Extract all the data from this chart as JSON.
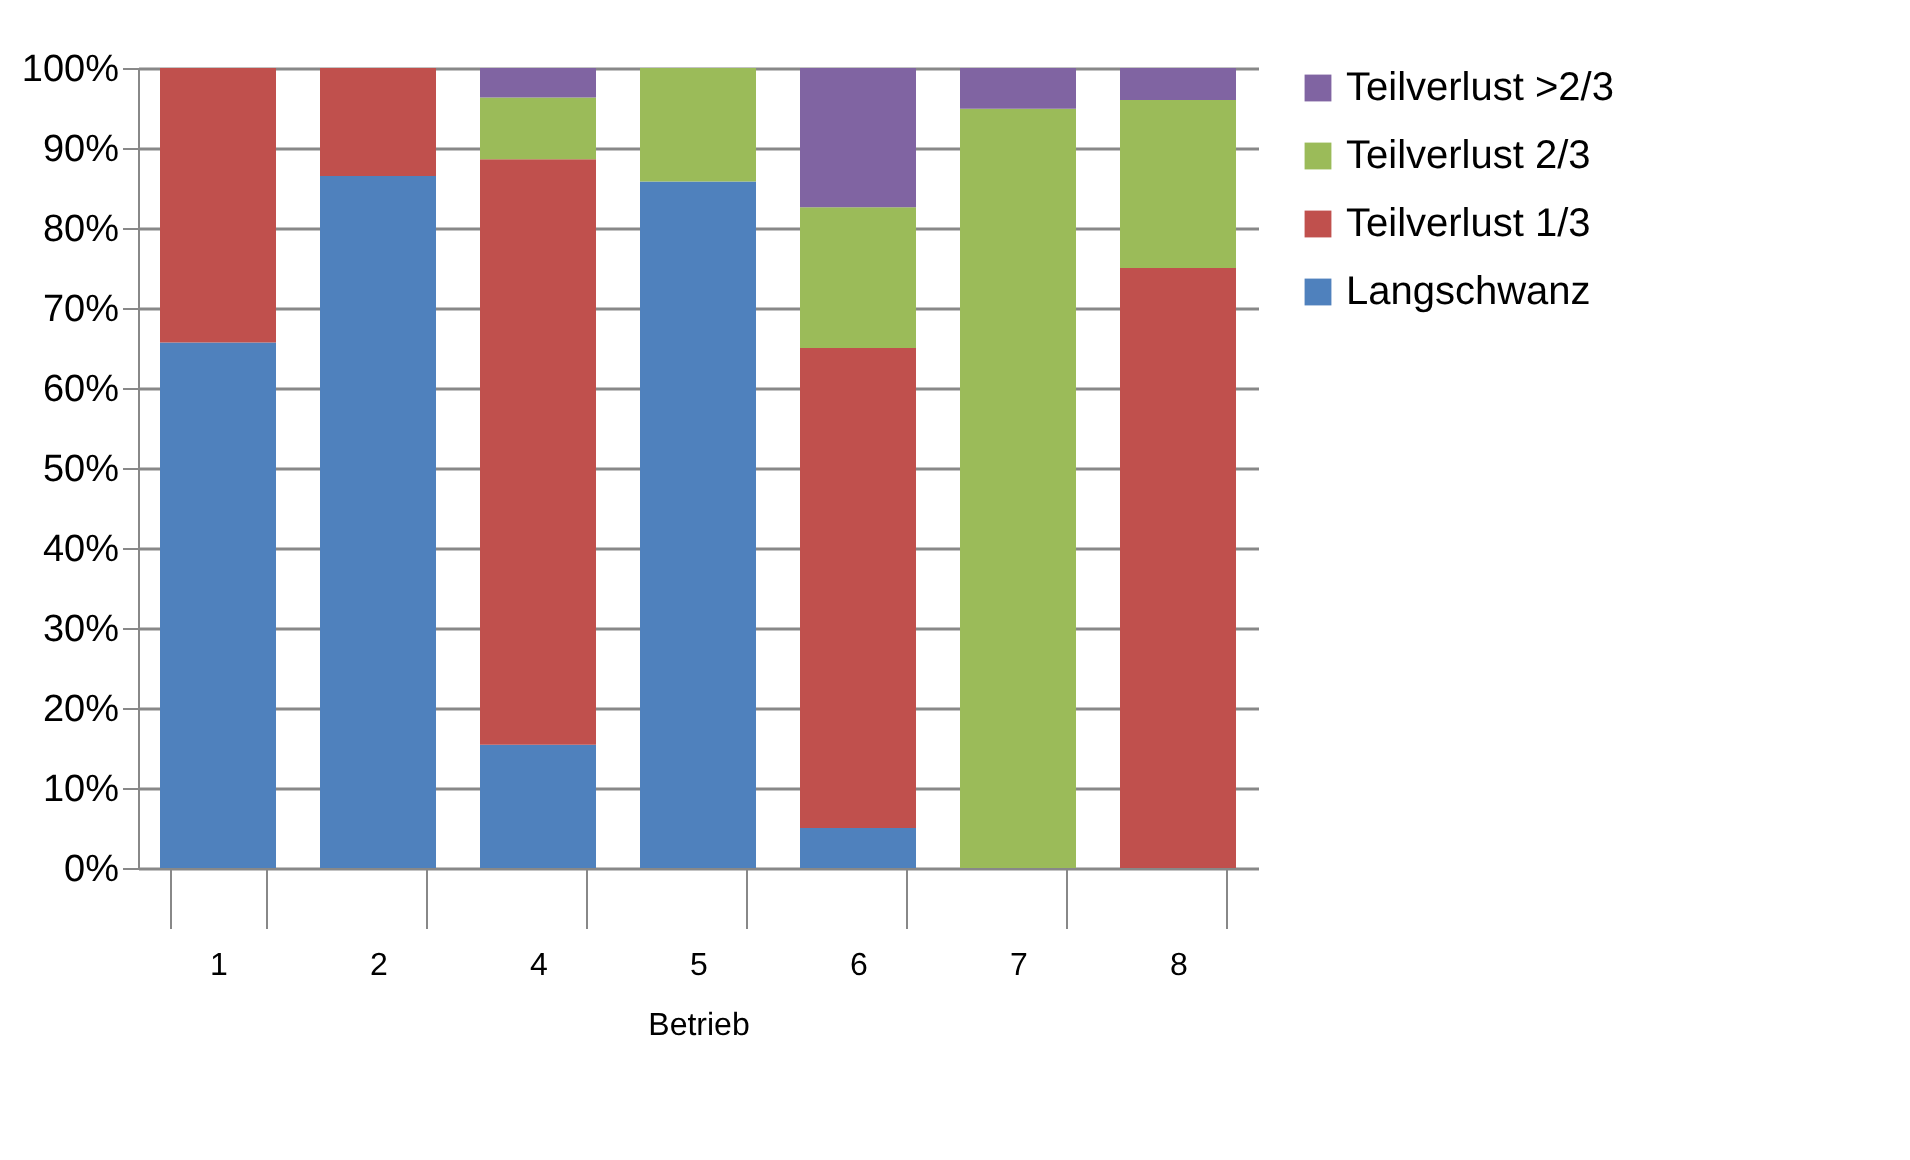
{
  "chart_data": {
    "type": "bar",
    "stacked": true,
    "xlabel": "Betrieb",
    "categories": [
      "1",
      "2",
      "4",
      "5",
      "6",
      "7",
      "8"
    ],
    "series": [
      {
        "name": "Langschwanz",
        "color": "#4f81bd",
        "values": [
          65.7,
          86.5,
          15.4,
          85.8,
          5,
          0,
          0
        ]
      },
      {
        "name": "Teilverlust 1/3",
        "color": "#c0504d",
        "values": [
          34.3,
          13.5,
          73.2,
          0,
          60,
          0,
          75
        ]
      },
      {
        "name": "Teilverlust 2/3",
        "color": "#9bbb59",
        "values": [
          0,
          0,
          7.7,
          14.2,
          17.6,
          94.9,
          21
        ]
      },
      {
        "name": "Teilverlust >2/3",
        "color": "#8064a2",
        "values": [
          0,
          0,
          3.7,
          0,
          17.4,
          5.1,
          4
        ]
      }
    ],
    "ylim": [
      0,
      100
    ],
    "yticks": [
      {
        "value": 0,
        "label": "0%"
      },
      {
        "value": 10,
        "label": "10%"
      },
      {
        "value": 20,
        "label": "20%"
      },
      {
        "value": 30,
        "label": "30%"
      },
      {
        "value": 40,
        "label": "40%"
      },
      {
        "value": 50,
        "label": "50%"
      },
      {
        "value": 60,
        "label": "60%"
      },
      {
        "value": 70,
        "label": "70%"
      },
      {
        "value": 80,
        "label": "80%"
      },
      {
        "value": 90,
        "label": "90%"
      },
      {
        "value": 100,
        "label": "100%"
      }
    ],
    "grid": "y",
    "legend": "right"
  }
}
